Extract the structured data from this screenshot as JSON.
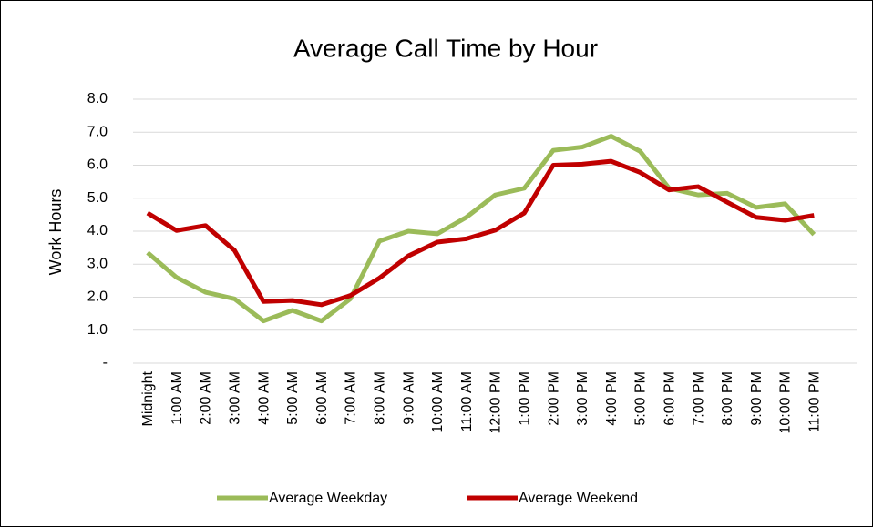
{
  "chart_data": {
    "type": "line",
    "title": "Average Call Time by Hour",
    "y_label": "Work Hours",
    "categories": [
      "Midnight",
      "1:00 AM",
      "2:00 AM",
      "3:00 AM",
      "4:00 AM",
      "5:00 AM",
      "6:00 AM",
      "7:00 AM",
      "8:00 AM",
      "9:00 AM",
      "10:00 AM",
      "11:00 AM",
      "12:00 PM",
      "1:00 PM",
      "2:00 PM",
      "3:00 PM",
      "4:00 PM",
      "5:00 PM",
      "6:00 PM",
      "7:00 PM",
      "8:00 PM",
      "9:00 PM",
      "10:00 PM",
      "11:00 PM"
    ],
    "series": [
      {
        "name": "Average Weekday",
        "color": "#9bbb59",
        "values": [
          3.35,
          2.6,
          2.15,
          1.95,
          1.28,
          1.6,
          1.28,
          1.95,
          3.7,
          4.0,
          3.92,
          4.42,
          5.1,
          5.3,
          6.45,
          6.55,
          6.88,
          6.42,
          5.3,
          5.1,
          5.15,
          4.72,
          4.83,
          3.9
        ]
      },
      {
        "name": "Average Weekend",
        "color": "#c00000",
        "values": [
          4.55,
          4.02,
          4.17,
          3.42,
          1.87,
          1.9,
          1.77,
          2.05,
          2.58,
          3.25,
          3.67,
          3.77,
          4.03,
          4.55,
          6.0,
          6.03,
          6.12,
          5.78,
          5.25,
          5.35,
          4.88,
          4.42,
          4.33,
          4.48
        ]
      }
    ],
    "ylim": [
      0,
      8
    ],
    "yticks": [
      {
        "value": 0,
        "label": "-"
      },
      {
        "value": 1,
        "label": "1.0"
      },
      {
        "value": 2,
        "label": "2.0"
      },
      {
        "value": 3,
        "label": "3.0"
      },
      {
        "value": 4,
        "label": "4.0"
      },
      {
        "value": 5,
        "label": "5.0"
      },
      {
        "value": 6,
        "label": "6.0"
      },
      {
        "value": 7,
        "label": "7.0"
      },
      {
        "value": 8,
        "label": "8.0"
      }
    ],
    "grid": true,
    "legend": "bottom"
  }
}
